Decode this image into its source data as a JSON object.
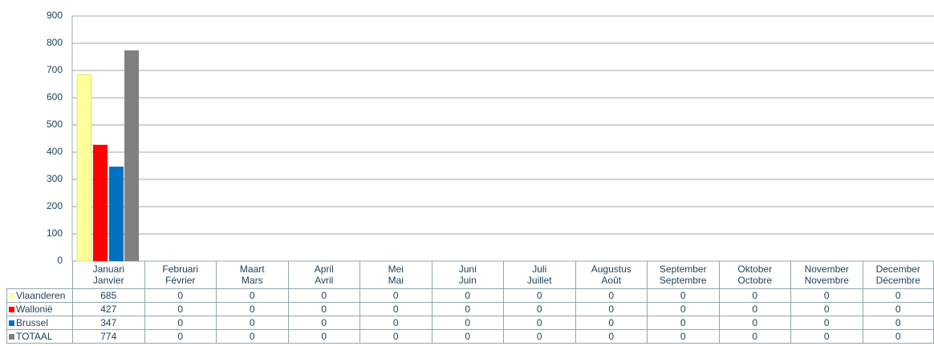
{
  "chart_data": {
    "type": "bar",
    "categories": [
      "Januari\nJanvier",
      "Februari\nFévrier",
      "Maart\nMars",
      "April\nAvril",
      "Mei\nMai",
      "Juni\nJuin",
      "Juli\nJuillet",
      "Augustus\nAoût",
      "September\nSeptembre",
      "Oktober\nOctobre",
      "November\nNovembre",
      "December\nDécembre"
    ],
    "series": [
      {
        "name": "Vlaanderen",
        "color": "#ffff99",
        "values": [
          685,
          0,
          0,
          0,
          0,
          0,
          0,
          0,
          0,
          0,
          0,
          0
        ]
      },
      {
        "name": "Wallonië",
        "color": "#ff0000",
        "values": [
          427,
          0,
          0,
          0,
          0,
          0,
          0,
          0,
          0,
          0,
          0,
          0
        ]
      },
      {
        "name": "Brussel",
        "color": "#0070c0",
        "values": [
          347,
          0,
          0,
          0,
          0,
          0,
          0,
          0,
          0,
          0,
          0,
          0
        ]
      },
      {
        "name": "TOTAAL",
        "color": "#808080",
        "values": [
          774,
          0,
          0,
          0,
          0,
          0,
          0,
          0,
          0,
          0,
          0,
          0
        ]
      }
    ],
    "ylim": [
      0,
      900
    ],
    "yticks": [
      0,
      100,
      200,
      300,
      400,
      500,
      600,
      700,
      800,
      900
    ],
    "grid": true
  }
}
